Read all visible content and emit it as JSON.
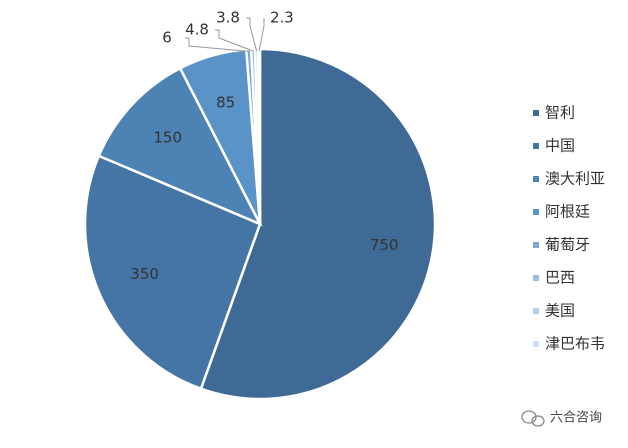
{
  "chart_data": {
    "type": "pie",
    "categories": [
      "智利",
      "中国",
      "澳大利亚",
      "阿根廷",
      "葡萄牙",
      "巴西",
      "美国",
      "津巴布韦"
    ],
    "values": [
      750,
      350,
      150,
      85,
      6,
      4.8,
      3.8,
      2.3
    ],
    "colors": [
      "#3f6a95",
      "#4475a4",
      "#4d82b4",
      "#5a93c8",
      "#7ba9d4",
      "#9bbee0",
      "#b6cfe8",
      "#d0e0f0"
    ],
    "legend": "right"
  },
  "watermark": "六合咨询"
}
